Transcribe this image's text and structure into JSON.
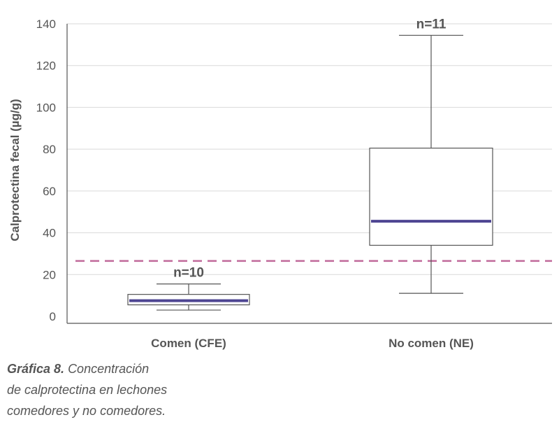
{
  "chart_data": {
    "type": "box",
    "title": "",
    "xlabel": "",
    "ylabel": "Calprotectina fecal (µg/g)",
    "ylim": [
      0,
      140
    ],
    "yticks": [
      0,
      20,
      40,
      60,
      80,
      100,
      120,
      140
    ],
    "grid": true,
    "reference_line": {
      "value": 26.5,
      "style": "dashed",
      "color": "#c0699a"
    },
    "categories": [
      "Comen (CFE)",
      "No comen (NE)"
    ],
    "boxes": [
      {
        "category": "Comen (CFE)",
        "n_label": "n=10",
        "min": 3,
        "q1": 5.5,
        "median": 7.5,
        "q3": 10.5,
        "max": 15.5
      },
      {
        "category": "No comen (NE)",
        "n_label": "n=11",
        "min": 11,
        "q1": 34,
        "median": 45.5,
        "q3": 80.5,
        "max": 134.5
      }
    ],
    "colors": {
      "median": "#4e4592",
      "box": "#555555",
      "grid": "#d9d9d9",
      "axis": "#555555"
    }
  },
  "caption": {
    "title": "Gráfica 8.",
    "line1": "Concentración",
    "line2": "de calprotectina en lechones",
    "line3": "comedores y no comedores."
  }
}
